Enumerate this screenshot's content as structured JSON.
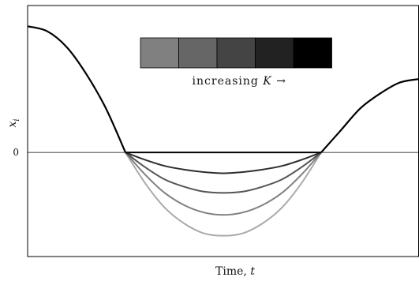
{
  "chart_data": {
    "type": "line",
    "title": "",
    "xlabel": "Time, ",
    "xlabel_var": "t",
    "ylabel": "x",
    "ylabel_sub": "i",
    "y_tick_labels": [
      "0"
    ],
    "grid": false,
    "x": [
      0.0,
      0.05,
      0.1,
      0.15,
      0.2,
      0.25,
      0.3,
      0.35,
      0.4,
      0.45,
      0.5,
      0.55,
      0.6,
      0.65,
      0.7,
      0.75,
      0.8,
      0.85,
      0.9,
      0.95,
      1.0
    ],
    "common_segments": [
      {
        "x": [
          0.0,
          0.05,
          0.1,
          0.15,
          0.2,
          0.25
        ],
        "y": [
          1.03,
          0.99,
          0.86,
          0.64,
          0.36,
          0.0
        ]
      },
      {
        "x": [
          0.75,
          0.8,
          0.85,
          0.9,
          0.95,
          1.0
        ],
        "y": [
          0.0,
          0.18,
          0.36,
          0.48,
          0.57,
          0.6
        ]
      }
    ],
    "series": [
      {
        "color": "#aaaaaa",
        "x": [
          0.25,
          0.3,
          0.35,
          0.4,
          0.45,
          0.5,
          0.55,
          0.6,
          0.65,
          0.7,
          0.75
        ],
        "y": [
          0.0,
          -0.25,
          -0.45,
          -0.58,
          -0.66,
          -0.68,
          -0.66,
          -0.58,
          -0.45,
          -0.25,
          0.0
        ]
      },
      {
        "color": "#808080",
        "x": [
          0.25,
          0.3,
          0.35,
          0.4,
          0.45,
          0.5,
          0.55,
          0.6,
          0.65,
          0.7,
          0.75
        ],
        "y": [
          0.0,
          -0.18,
          -0.33,
          -0.43,
          -0.49,
          -0.51,
          -0.49,
          -0.43,
          -0.33,
          -0.18,
          0.0
        ]
      },
      {
        "color": "#555555",
        "x": [
          0.25,
          0.3,
          0.35,
          0.4,
          0.45,
          0.5,
          0.55,
          0.6,
          0.65,
          0.7,
          0.75
        ],
        "y": [
          0.0,
          -0.12,
          -0.22,
          -0.28,
          -0.32,
          -0.33,
          -0.32,
          -0.28,
          -0.22,
          -0.12,
          0.0
        ]
      },
      {
        "color": "#2e2e2e",
        "x": [
          0.25,
          0.3,
          0.35,
          0.4,
          0.45,
          0.5,
          0.55,
          0.6,
          0.65,
          0.7,
          0.75
        ],
        "y": [
          0.0,
          -0.06,
          -0.11,
          -0.14,
          -0.16,
          -0.17,
          -0.16,
          -0.14,
          -0.11,
          -0.06,
          0.0
        ]
      },
      {
        "color": "#000000",
        "x": [
          0.25,
          0.3,
          0.35,
          0.4,
          0.45,
          0.5,
          0.55,
          0.6,
          0.65,
          0.7,
          0.75
        ],
        "y": [
          0.0,
          0.0,
          0.0,
          0.0,
          0.0,
          0.0,
          0.0,
          0.0,
          0.0,
          0.0,
          0.0
        ]
      }
    ],
    "xlim": [
      0.0,
      1.0
    ],
    "ylim": [
      -0.85,
      1.2
    ],
    "zero_line": true,
    "legend": {
      "placement": "top-center",
      "colors": [
        "#808080",
        "#666666",
        "#444444",
        "#222222",
        "#000000"
      ],
      "text": "increasing ",
      "text_var": "K",
      "text_arrow": "→"
    }
  }
}
